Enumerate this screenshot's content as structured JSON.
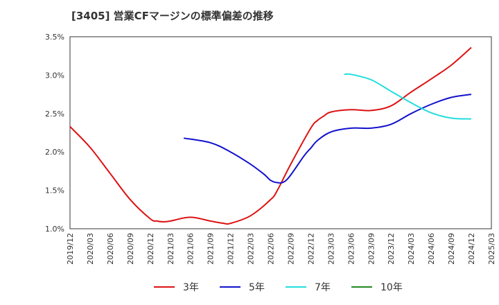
{
  "chart_data": {
    "type": "line",
    "title": "[3405]  営業CFマージンの標準偏差の推移",
    "y_ticks": [
      "3.5%",
      "3.0%",
      "2.5%",
      "2.0%",
      "1.5%",
      "1.0%"
    ],
    "ylim": [
      1.0,
      3.5
    ],
    "x_ticks": [
      "2019/12",
      "2020/03",
      "2020/06",
      "2020/09",
      "2020/12",
      "2021/03",
      "2021/06",
      "2021/09",
      "2021/12",
      "2022/03",
      "2022/06",
      "2022/09",
      "2022/12",
      "2023/03",
      "2023/06",
      "2023/09",
      "2023/12",
      "2024/03",
      "2024/06",
      "2024/09",
      "2024/12",
      "2025/03"
    ],
    "grid": true,
    "legend_position": "bottom",
    "series": [
      {
        "name": "3年",
        "color": "#dd1111",
        "x": [
          "2019/12",
          "2020/03",
          "2020/06",
          "2020/09",
          "2020/12",
          "2021/01",
          "2021/02",
          "2021/03",
          "2021/06",
          "2021/09",
          "2021/11",
          "2021/12",
          "2022/03",
          "2022/06",
          "2022/07",
          "2022/09",
          "2022/12",
          "2023/01",
          "2023/02",
          "2023/03",
          "2023/06",
          "2023/09",
          "2023/12",
          "2024/03",
          "2024/06",
          "2024/09",
          "2024/12"
        ],
        "values": [
          2.33,
          2.06,
          1.72,
          1.38,
          1.13,
          1.1,
          1.09,
          1.1,
          1.15,
          1.1,
          1.07,
          1.07,
          1.17,
          1.38,
          1.5,
          1.84,
          2.31,
          2.41,
          2.47,
          2.52,
          2.55,
          2.54,
          2.6,
          2.78,
          2.95,
          3.13,
          3.36
        ]
      },
      {
        "name": "5年",
        "color": "#1111cc",
        "x": [
          "2021/05",
          "2021/09",
          "2021/12",
          "2022/03",
          "2022/05",
          "2022/06",
          "2022/07",
          "2022/08",
          "2022/09",
          "2022/11",
          "2022/12",
          "2023/01",
          "2023/03",
          "2023/06",
          "2023/09",
          "2023/12",
          "2024/03",
          "2024/06",
          "2024/09",
          "2024/12"
        ],
        "values": [
          2.18,
          2.12,
          2.0,
          1.84,
          1.71,
          1.63,
          1.6,
          1.61,
          1.7,
          1.95,
          2.05,
          2.15,
          2.26,
          2.31,
          2.31,
          2.36,
          2.5,
          2.62,
          2.71,
          2.75
        ]
      },
      {
        "name": "7年",
        "color": "#22dddd",
        "x": [
          "2023/05",
          "2023/06",
          "2023/09",
          "2023/12",
          "2024/03",
          "2024/06",
          "2024/09",
          "2024/12"
        ],
        "values": [
          3.01,
          3.01,
          2.94,
          2.79,
          2.64,
          2.51,
          2.44,
          2.43
        ]
      },
      {
        "name": "10年",
        "color": "#228822",
        "x": [],
        "values": []
      }
    ]
  }
}
